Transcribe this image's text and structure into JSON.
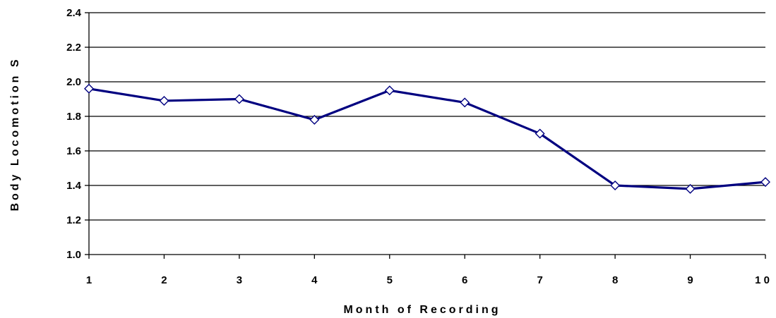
{
  "chart_data": {
    "type": "line",
    "title": "",
    "xlabel": "Month of Recording",
    "ylabel": "Body Locomotion S",
    "ylim": [
      1.0,
      2.4
    ],
    "ytick_labels": [
      "1.0",
      "1.2",
      "1.4",
      "1.6",
      "1.8",
      "2.0",
      "2.2",
      "2.4"
    ],
    "xtick_labels": [
      "1",
      "2",
      "3",
      "4",
      "5",
      "6",
      "7",
      "8",
      "9",
      "1 0"
    ],
    "grid": "horizontal",
    "legend": "none",
    "series": [
      {
        "x": [
          1,
          2,
          3,
          4,
          5,
          6,
          7,
          8,
          9,
          10
        ],
        "values": [
          1.96,
          1.89,
          1.9,
          1.78,
          1.95,
          1.88,
          1.7,
          1.4,
          1.38,
          1.42
        ],
        "color": "#000080",
        "marker": "diamond-open"
      }
    ]
  }
}
